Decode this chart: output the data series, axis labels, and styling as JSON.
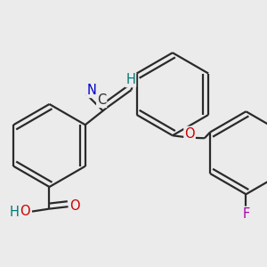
{
  "bg_color": "#ebebeb",
  "bond_color": "#2a2a2a",
  "bond_width": 1.6,
  "figsize": [
    3.0,
    3.0
  ],
  "dpi": 100,
  "colors": {
    "N": "#0000cc",
    "O": "#cc0000",
    "F": "#aa00aa",
    "C": "#2a2a2a",
    "H": "#007777"
  },
  "fs": 10.5,
  "ring_r": 0.155,
  "dbo": 0.02
}
